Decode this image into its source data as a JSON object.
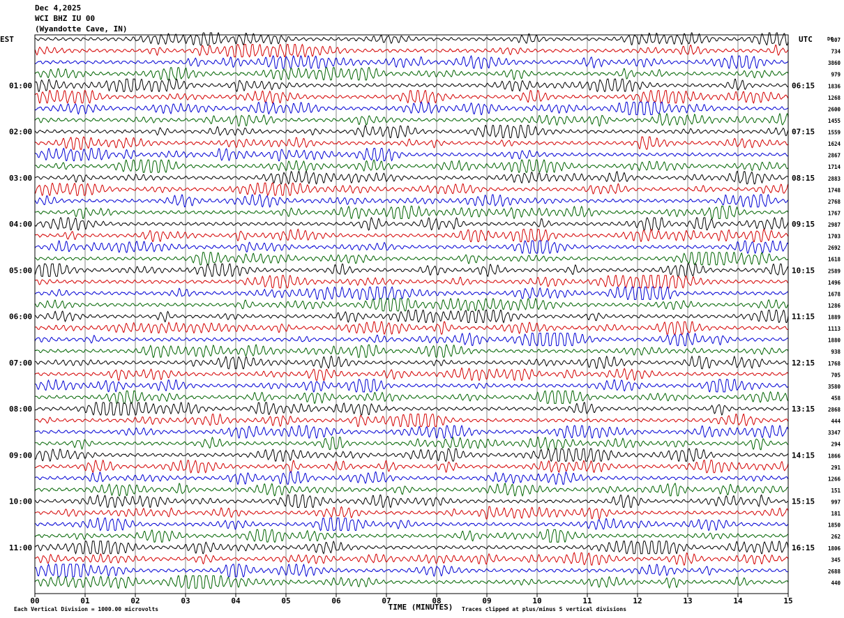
{
  "header": {
    "date": "Dec 4,2025",
    "station": "WCI BHZ IU 00",
    "location": "(Wyandotte Cave, IN)"
  },
  "axes": {
    "left_zone": "EST",
    "right_zone": "UTC",
    "dc_label": "DC",
    "xlabel": "TIME (MINUTES)",
    "footer_left": "Each Vertical Division = 1000.00 microvolts",
    "footer_right": "Traces clipped at plus/minus 5 vertical divisions"
  },
  "colors": {
    "trace_cycle": [
      "#000000",
      "#d40000",
      "#0000d4",
      "#006400"
    ],
    "grid": "#000000",
    "background": "#ffffff"
  },
  "chart_data": {
    "type": "line",
    "title": "WCI BHZ IU 00 (Wyandotte Cave, IN)",
    "xlabel": "TIME (MINUTES)",
    "xlim": [
      0,
      15
    ],
    "x_ticks": [
      "00",
      "01",
      "02",
      "03",
      "04",
      "05",
      "06",
      "07",
      "08",
      "09",
      "10",
      "11",
      "12",
      "13",
      "14",
      "15"
    ],
    "trace_count": 48,
    "minutes_per_trace": 15,
    "left_time_labels": [
      "01:00",
      "02:00",
      "03:00",
      "04:00",
      "05:00",
      "06:00",
      "07:00",
      "08:00",
      "09:00",
      "10:00",
      "11:00"
    ],
    "right_time_labels": [
      "06:15",
      "07:15",
      "08:15",
      "09:15",
      "10:15",
      "11:15",
      "12:15",
      "13:15",
      "14:15",
      "15:15",
      "16:15"
    ],
    "dc_offsets": [
      "807",
      "734",
      "3860",
      "979",
      "1836",
      "1268",
      "2600",
      "1455",
      "1559",
      "1624",
      "2867",
      "1714",
      "2883",
      "1748",
      "2768",
      "1767",
      "2987",
      "1703",
      "2692",
      "1618",
      "2589",
      "1496",
      "1678",
      "1286",
      "1889",
      "1113",
      "1880",
      "938",
      "1768",
      "705",
      "3580",
      "458",
      "2868",
      "444",
      "3347",
      "294",
      "1866",
      "291",
      "1266",
      "151",
      "997",
      "181",
      "1850",
      "262",
      "1806",
      "345",
      "2688",
      "440"
    ]
  }
}
